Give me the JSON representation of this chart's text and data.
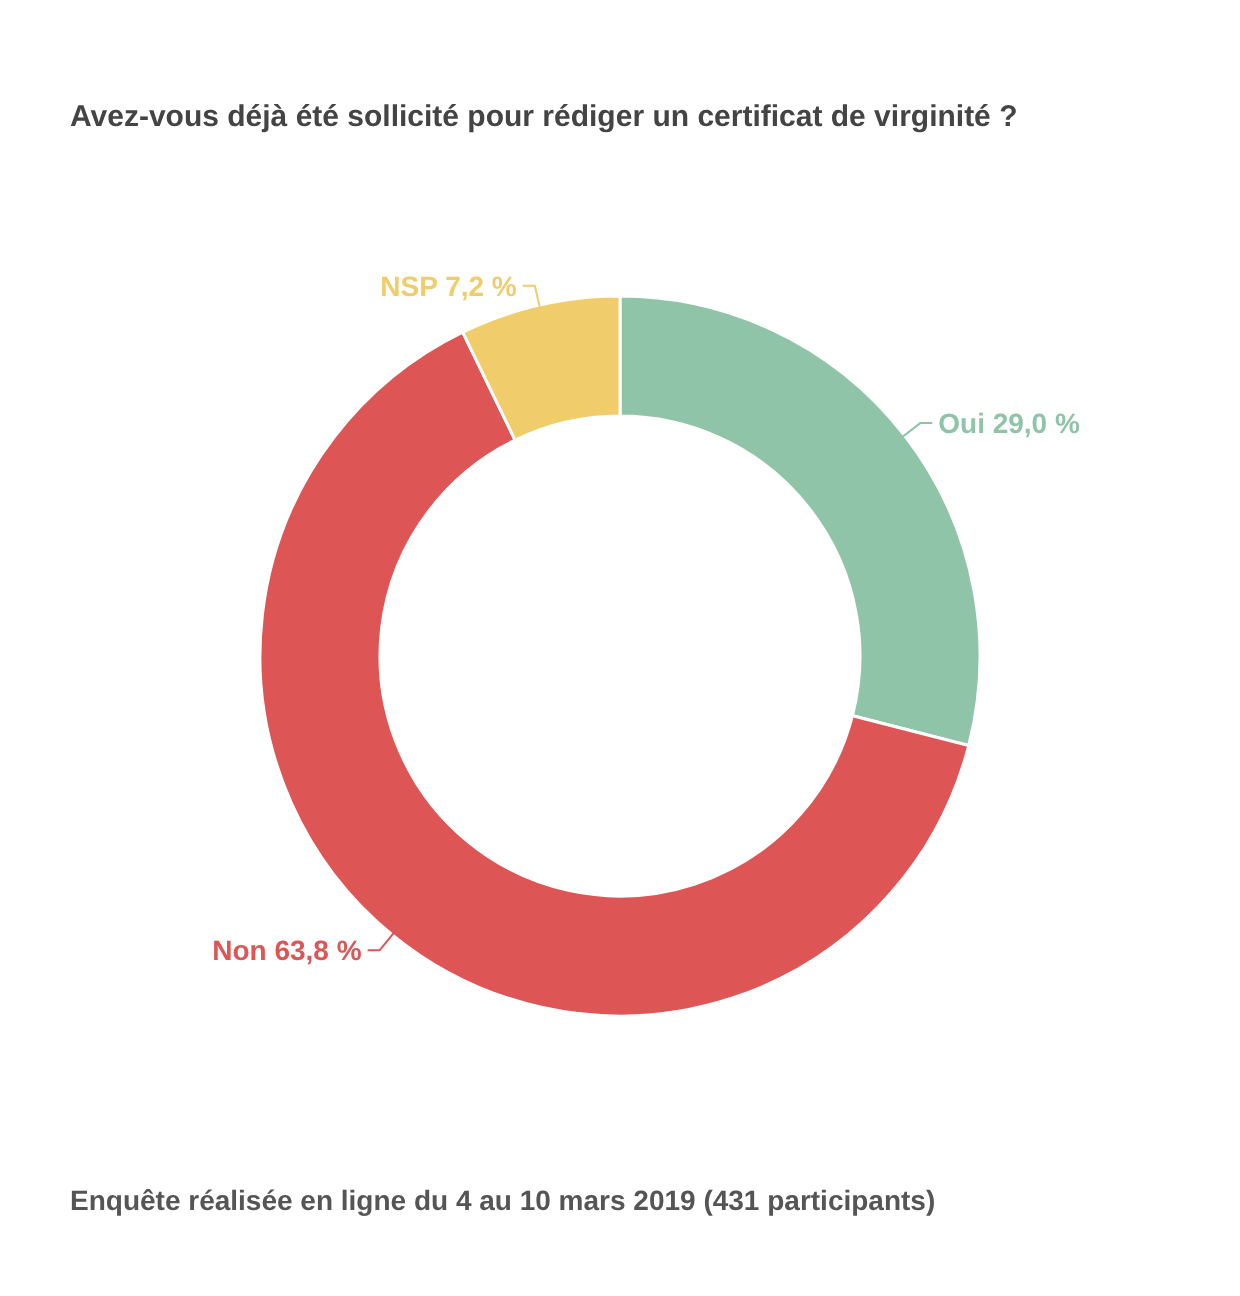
{
  "chart_data": {
    "type": "donut",
    "title": "Avez-vous déjà été sollicité pour rédiger un certificat de virginité ?",
    "categories": [
      "Oui",
      "Non",
      "NSP"
    ],
    "values": [
      29.0,
      63.8,
      7.2
    ],
    "colors": [
      "#8fc4a8",
      "#dd5555",
      "#f0cc6a"
    ],
    "value_labels": [
      "29,0 %",
      "63,8 %",
      "7,2 %"
    ],
    "legend": false,
    "annotations": [
      "Enquête réalisée en ligne du 4 au 10 mars 2019  (431 participants)"
    ]
  }
}
